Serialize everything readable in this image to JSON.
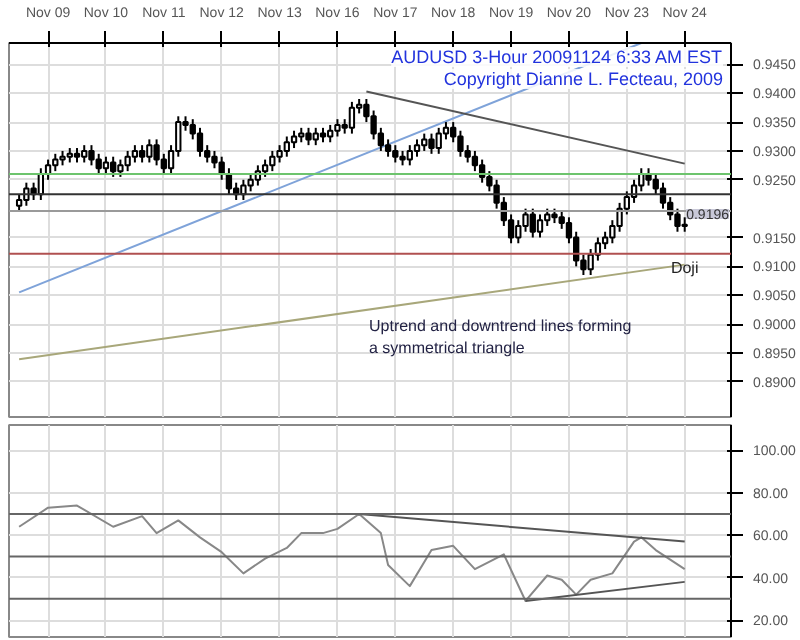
{
  "chart_data": [
    {
      "type": "candlestick",
      "title": "AUDUSD 3-Hour 20091124 6:33 AM EST",
      "subtitle": "Copyright Dianne L. Fecteau, 2009",
      "color": "#000000",
      "grid": true,
      "categories": [
        null,
        null,
        null,
        null,
        "Nov 09",
        null,
        null,
        null,
        null,
        null,
        null,
        null,
        "Nov 10",
        null,
        null,
        null,
        null,
        null,
        null,
        null,
        "Nov 11",
        null,
        null,
        null,
        null,
        null,
        null,
        null,
        "Nov 12",
        null,
        null,
        null,
        null,
        null,
        null,
        null,
        "Nov 13",
        null,
        null,
        null,
        null,
        null,
        null,
        null,
        "Nov 16",
        null,
        null,
        null,
        null,
        null,
        null,
        null,
        "Nov 17",
        null,
        null,
        null,
        null,
        null,
        null,
        null,
        "Nov 18",
        null,
        null,
        null,
        null,
        null,
        null,
        null,
        "Nov 19",
        null,
        null,
        null,
        null,
        null,
        null,
        null,
        "Nov 20",
        null,
        null,
        null,
        null,
        null,
        null,
        null,
        "Nov 23",
        null,
        null,
        null,
        null,
        null,
        null,
        null,
        "Nov 24"
      ],
      "ohlc": [
        [
          0.9205,
          0.9225,
          0.9195,
          0.9215
        ],
        [
          0.9215,
          0.9245,
          0.9205,
          0.9235
        ],
        [
          0.9235,
          0.9245,
          0.9215,
          0.9225
        ],
        [
          0.9225,
          0.927,
          0.9215,
          0.926
        ],
        [
          0.926,
          0.9285,
          0.925,
          0.9275
        ],
        [
          0.9275,
          0.9295,
          0.9265,
          0.9285
        ],
        [
          0.9285,
          0.93,
          0.9275,
          0.929
        ],
        [
          0.929,
          0.9305,
          0.928,
          0.9295
        ],
        [
          0.9295,
          0.9305,
          0.928,
          0.929
        ],
        [
          0.929,
          0.931,
          0.928,
          0.93
        ],
        [
          0.93,
          0.931,
          0.9275,
          0.9285
        ],
        [
          0.9285,
          0.9295,
          0.926,
          0.927
        ],
        [
          0.927,
          0.929,
          0.926,
          0.928
        ],
        [
          0.928,
          0.929,
          0.9255,
          0.9265
        ],
        [
          0.9265,
          0.9285,
          0.9255,
          0.9275
        ],
        [
          0.9275,
          0.93,
          0.9265,
          0.929
        ],
        [
          0.929,
          0.931,
          0.928,
          0.93
        ],
        [
          0.93,
          0.931,
          0.928,
          0.929
        ],
        [
          0.929,
          0.932,
          0.928,
          0.931
        ],
        [
          0.931,
          0.932,
          0.9275,
          0.9285
        ],
        [
          0.9285,
          0.9295,
          0.926,
          0.927
        ],
        [
          0.927,
          0.931,
          0.926,
          0.93
        ],
        [
          0.93,
          0.936,
          0.929,
          0.935
        ],
        [
          0.935,
          0.936,
          0.9335,
          0.9345
        ],
        [
          0.9345,
          0.9355,
          0.932,
          0.933
        ],
        [
          0.933,
          0.934,
          0.929,
          0.93
        ],
        [
          0.93,
          0.931,
          0.928,
          0.929
        ],
        [
          0.929,
          0.93,
          0.927,
          0.928
        ],
        [
          0.928,
          0.929,
          0.925,
          0.926
        ],
        [
          0.926,
          0.927,
          0.9225,
          0.9235
        ],
        [
          0.9235,
          0.9245,
          0.9215,
          0.9225
        ],
        [
          0.9225,
          0.925,
          0.9215,
          0.924
        ],
        [
          0.924,
          0.926,
          0.923,
          0.925
        ],
        [
          0.925,
          0.9275,
          0.924,
          0.9265
        ],
        [
          0.9265,
          0.9285,
          0.9255,
          0.9275
        ],
        [
          0.9275,
          0.93,
          0.9265,
          0.929
        ],
        [
          0.929,
          0.931,
          0.928,
          0.93
        ],
        [
          0.93,
          0.9325,
          0.929,
          0.9315
        ],
        [
          0.9315,
          0.9335,
          0.9305,
          0.9325
        ],
        [
          0.9325,
          0.934,
          0.9315,
          0.933
        ],
        [
          0.933,
          0.934,
          0.931,
          0.932
        ],
        [
          0.932,
          0.934,
          0.931,
          0.933
        ],
        [
          0.933,
          0.934,
          0.9315,
          0.9325
        ],
        [
          0.9325,
          0.9345,
          0.9315,
          0.9335
        ],
        [
          0.9335,
          0.9355,
          0.9325,
          0.9345
        ],
        [
          0.9345,
          0.9355,
          0.933,
          0.934
        ],
        [
          0.934,
          0.9385,
          0.933,
          0.9375
        ],
        [
          0.9375,
          0.939,
          0.9365,
          0.938
        ],
        [
          0.938,
          0.939,
          0.935,
          0.936
        ],
        [
          0.936,
          0.937,
          0.932,
          0.933
        ],
        [
          0.933,
          0.934,
          0.93,
          0.931
        ],
        [
          0.931,
          0.932,
          0.929,
          0.93
        ],
        [
          0.93,
          0.931,
          0.928,
          0.929
        ],
        [
          0.929,
          0.93,
          0.9275,
          0.9285
        ],
        [
          0.9285,
          0.931,
          0.9275,
          0.93
        ],
        [
          0.93,
          0.932,
          0.929,
          0.931
        ],
        [
          0.931,
          0.933,
          0.93,
          0.932
        ],
        [
          0.932,
          0.933,
          0.9295,
          0.9305
        ],
        [
          0.9305,
          0.934,
          0.9295,
          0.933
        ],
        [
          0.933,
          0.935,
          0.932,
          0.934
        ],
        [
          0.934,
          0.935,
          0.9315,
          0.9325
        ],
        [
          0.9325,
          0.9335,
          0.929,
          0.93
        ],
        [
          0.93,
          0.931,
          0.928,
          0.929
        ],
        [
          0.929,
          0.93,
          0.9265,
          0.9275
        ],
        [
          0.9275,
          0.9285,
          0.9245,
          0.9255
        ],
        [
          0.9255,
          0.9265,
          0.923,
          0.924
        ],
        [
          0.924,
          0.925,
          0.92,
          0.921
        ],
        [
          0.921,
          0.922,
          0.917,
          0.918
        ],
        [
          0.918,
          0.919,
          0.914,
          0.915
        ],
        [
          0.915,
          0.918,
          0.914,
          0.917
        ],
        [
          0.917,
          0.92,
          0.916,
          0.919
        ],
        [
          0.919,
          0.92,
          0.915,
          0.916
        ],
        [
          0.916,
          0.919,
          0.915,
          0.918
        ],
        [
          0.918,
          0.92,
          0.917,
          0.919
        ],
        [
          0.919,
          0.92,
          0.9175,
          0.9185
        ],
        [
          0.9185,
          0.9195,
          0.9165,
          0.9175
        ],
        [
          0.9175,
          0.9185,
          0.914,
          0.915
        ],
        [
          0.915,
          0.916,
          0.91,
          0.911
        ],
        [
          0.911,
          0.912,
          0.9085,
          0.9095
        ],
        [
          0.9095,
          0.913,
          0.9085,
          0.912
        ],
        [
          0.912,
          0.915,
          0.911,
          0.914
        ],
        [
          0.914,
          0.916,
          0.913,
          0.915
        ],
        [
          0.915,
          0.918,
          0.914,
          0.917
        ],
        [
          0.917,
          0.921,
          0.916,
          0.92
        ],
        [
          0.92,
          0.923,
          0.919,
          0.922
        ],
        [
          0.922,
          0.925,
          0.921,
          0.924
        ],
        [
          0.924,
          0.927,
          0.923,
          0.926
        ],
        [
          0.926,
          0.927,
          0.924,
          0.925
        ],
        [
          0.925,
          0.926,
          0.9225,
          0.9235
        ],
        [
          0.9235,
          0.9245,
          0.92,
          0.921
        ],
        [
          0.921,
          0.922,
          0.918,
          0.919
        ],
        [
          0.919,
          0.92,
          0.916,
          0.917
        ],
        [
          0.917,
          0.9185,
          0.916,
          0.9172
        ]
      ],
      "series": [
        {
          "type": "line",
          "color": "#7fa3d9",
          "values": [
            0.9055,
            null,
            null,
            null,
            null,
            null,
            null,
            null,
            null,
            null,
            null,
            null,
            null,
            null,
            null,
            null,
            null,
            null,
            null,
            null,
            null,
            null,
            null,
            null,
            null,
            null,
            null,
            null,
            null,
            null,
            null,
            null,
            null,
            null,
            null,
            null,
            null,
            null,
            null,
            null,
            null,
            null,
            null,
            null,
            null,
            null,
            null,
            null,
            null,
            null,
            null,
            null,
            null,
            null,
            null,
            null,
            null,
            null,
            null,
            null,
            null,
            null,
            null,
            null,
            null,
            null,
            null,
            null,
            null,
            null,
            null,
            null,
            null,
            null,
            null,
            null,
            null,
            null,
            null,
            null,
            null,
            null,
            null,
            null,
            null,
            null,
            0.9487,
            null,
            null,
            null,
            null,
            null,
            null
          ]
        },
        {
          "type": "line",
          "color": "#555555",
          "values": [
            null,
            null,
            null,
            null,
            null,
            null,
            null,
            null,
            null,
            null,
            null,
            null,
            null,
            null,
            null,
            null,
            null,
            null,
            null,
            null,
            null,
            null,
            null,
            null,
            null,
            null,
            null,
            null,
            null,
            null,
            null,
            null,
            null,
            null,
            null,
            null,
            null,
            null,
            null,
            null,
            null,
            null,
            null,
            null,
            null,
            null,
            null,
            null,
            0.9403,
            null,
            null,
            null,
            null,
            null,
            null,
            null,
            null,
            null,
            null,
            null,
            null,
            null,
            null,
            null,
            null,
            null,
            null,
            null,
            null,
            null,
            null,
            null,
            null,
            null,
            null,
            null,
            null,
            null,
            null,
            null,
            null,
            null,
            null,
            null,
            null,
            null,
            null,
            null,
            null,
            null,
            null,
            null,
            0.9278
          ]
        },
        {
          "type": "line",
          "color": "#a8a77a",
          "values": [
            0.8939,
            null,
            null,
            null,
            null,
            null,
            null,
            null,
            null,
            null,
            null,
            null,
            null,
            null,
            null,
            null,
            null,
            null,
            null,
            null,
            null,
            null,
            null,
            null,
            null,
            null,
            null,
            null,
            null,
            null,
            null,
            null,
            null,
            null,
            null,
            null,
            null,
            null,
            null,
            null,
            null,
            null,
            null,
            null,
            null,
            null,
            null,
            null,
            null,
            null,
            null,
            null,
            null,
            null,
            null,
            null,
            null,
            null,
            null,
            null,
            null,
            null,
            null,
            null,
            null,
            null,
            null,
            null,
            null,
            null,
            null,
            null,
            null,
            null,
            null,
            null,
            null,
            null,
            null,
            null,
            null,
            null,
            null,
            null,
            null,
            null,
            null,
            null,
            null,
            null,
            null,
            null,
            0.9103
          ]
        }
      ],
      "ref_lines": [
        {
          "axis": "y",
          "value": 0.926,
          "color": "#6dc46d"
        },
        {
          "axis": "y",
          "value": 0.9225,
          "color": "#333333"
        },
        {
          "axis": "y",
          "value": 0.9196,
          "label": "0.9196",
          "color": "#9a9a9a"
        },
        {
          "axis": "y",
          "value": 0.9122,
          "color": "#b05050"
        }
      ],
      "annotations": [
        "Doji",
        "Uptrend and downtrend lines forming a symmetrical triangle"
      ],
      "ylim": [
        0.8839,
        0.9487
      ],
      "yticks": [
        {
          "value": 0.89,
          "label": "0.8900"
        },
        {
          "value": 0.895,
          "label": "0.8950"
        },
        {
          "value": 0.9,
          "label": "0.9000"
        },
        {
          "value": 0.905,
          "label": "0.9050"
        },
        {
          "value": 0.91,
          "label": "0.9100"
        },
        {
          "value": 0.915,
          "label": "0.9150"
        },
        {
          "value": 0.925,
          "label": "0.9250"
        },
        {
          "value": 0.93,
          "label": "0.9300"
        },
        {
          "value": 0.935,
          "label": "0.9350"
        },
        {
          "value": 0.94,
          "label": "0.9400"
        },
        {
          "value": 0.945,
          "label": "0.9450"
        }
      ]
    },
    {
      "type": "line",
      "grid": true,
      "tick_labels": "y",
      "series": [
        {
          "color": "#888888",
          "values": [
            64,
            null,
            null,
            null,
            73,
            null,
            null,
            null,
            74,
            null,
            null,
            null,
            null,
            64,
            null,
            null,
            null,
            69,
            null,
            61,
            null,
            null,
            67,
            null,
            null,
            59,
            null,
            null,
            52,
            null,
            null,
            42,
            null,
            null,
            49,
            null,
            null,
            54,
            null,
            61,
            null,
            null,
            61,
            null,
            63,
            null,
            null,
            70,
            null,
            null,
            61,
            46,
            null,
            null,
            36,
            null,
            null,
            53,
            null,
            null,
            55,
            null,
            null,
            44,
            null,
            null,
            null,
            51,
            null,
            null,
            29,
            null,
            null,
            41,
            null,
            39,
            null,
            32,
            null,
            39,
            null,
            null,
            42,
            null,
            null,
            57,
            59,
            null,
            53,
            null,
            null,
            null,
            44
          ]
        },
        {
          "color": "#555555",
          "values": [
            null,
            null,
            null,
            null,
            null,
            null,
            null,
            null,
            null,
            null,
            null,
            null,
            null,
            null,
            null,
            null,
            null,
            null,
            null,
            null,
            null,
            null,
            null,
            null,
            null,
            null,
            null,
            null,
            null,
            null,
            null,
            null,
            null,
            null,
            null,
            null,
            null,
            null,
            null,
            null,
            null,
            null,
            null,
            null,
            null,
            null,
            null,
            70,
            null,
            null,
            null,
            null,
            null,
            null,
            null,
            null,
            null,
            null,
            null,
            null,
            null,
            null,
            null,
            null,
            null,
            null,
            null,
            null,
            null,
            null,
            null,
            null,
            null,
            null,
            null,
            null,
            null,
            null,
            null,
            null,
            null,
            null,
            null,
            null,
            null,
            null,
            null,
            null,
            null,
            null,
            null,
            null,
            57
          ]
        },
        {
          "color": "#555555",
          "values": [
            null,
            null,
            null,
            null,
            null,
            null,
            null,
            null,
            null,
            null,
            null,
            null,
            null,
            null,
            null,
            null,
            null,
            null,
            null,
            null,
            null,
            null,
            null,
            null,
            null,
            null,
            null,
            null,
            null,
            null,
            null,
            null,
            null,
            null,
            null,
            null,
            null,
            null,
            null,
            null,
            null,
            null,
            null,
            null,
            null,
            null,
            null,
            null,
            null,
            null,
            null,
            null,
            null,
            null,
            null,
            null,
            null,
            null,
            null,
            null,
            null,
            null,
            null,
            null,
            null,
            null,
            null,
            null,
            null,
            null,
            29,
            null,
            null,
            null,
            null,
            null,
            null,
            null,
            null,
            null,
            null,
            null,
            null,
            null,
            null,
            null,
            null,
            null,
            null,
            null,
            null,
            null,
            38
          ]
        }
      ],
      "ref_lines": [
        {
          "axis": "y",
          "value": 70,
          "color": "#666666"
        },
        {
          "axis": "y",
          "value": 50,
          "color": "#666666"
        },
        {
          "axis": "y",
          "value": 30,
          "color": "#666666"
        }
      ],
      "ylim": [
        12,
        112
      ],
      "yticks": [
        {
          "value": 20,
          "label": "20.00"
        },
        {
          "value": 40,
          "label": "40.00"
        },
        {
          "value": 60,
          "label": "60.00"
        },
        {
          "value": 80,
          "label": "80.00"
        },
        {
          "value": 100,
          "label": "100.00"
        }
      ]
    }
  ]
}
